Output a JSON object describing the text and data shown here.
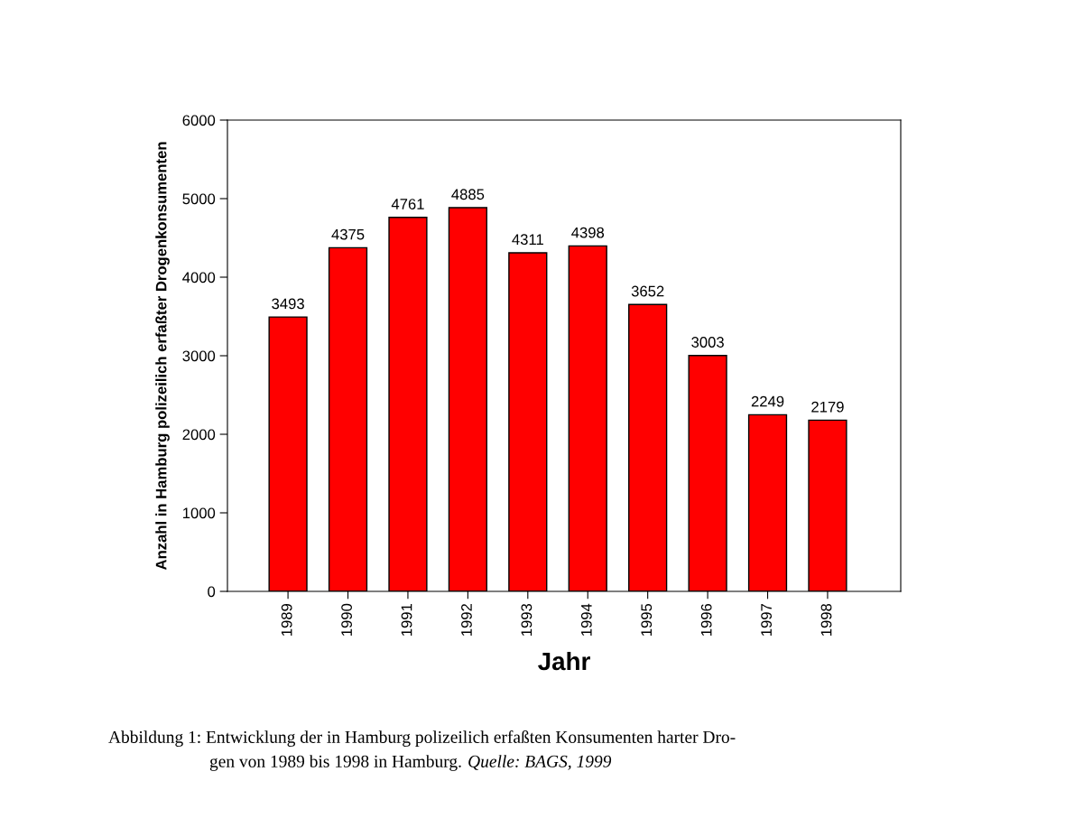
{
  "chart_data": {
    "type": "bar",
    "xlabel": "Jahr",
    "ylabel": "Anzahl in Hamburg polizeilich erfaßter Drogenkonsumenten",
    "categories": [
      "1989",
      "1990",
      "1991",
      "1992",
      "1993",
      "1994",
      "1995",
      "1996",
      "1997",
      "1998"
    ],
    "values": [
      3493,
      4375,
      4761,
      4885,
      4311,
      4398,
      3652,
      3003,
      2249,
      2179
    ],
    "color": "#ff0000",
    "ylim": [
      0,
      6000
    ],
    "yticks": [
      0,
      1000,
      2000,
      3000,
      4000,
      5000,
      6000
    ],
    "grid": false,
    "data_labels": true,
    "annotations": [
      "Abbildung 1: Entwicklung der in Hamburg polizeilich erfaßten Konsumenten harter Dro-\ngen von 1989 bis 1998 in Hamburg.",
      "Quelle: BAGS, 1999"
    ]
  }
}
